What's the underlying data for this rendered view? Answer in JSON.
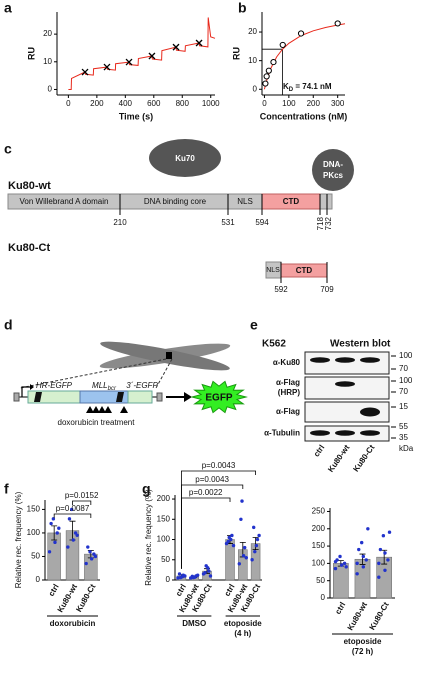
{
  "panel_labels": [
    "a",
    "b",
    "c",
    "d",
    "e",
    "f",
    "g"
  ],
  "chart_data": [
    {
      "type": "line",
      "xlabel": "Time (s)",
      "ylabel": "RU",
      "x": [
        0,
        20,
        22,
        117,
        120,
        175,
        177,
        271,
        274,
        330,
        332,
        426,
        429,
        490,
        492,
        587,
        590,
        655,
        657,
        756,
        759,
        820,
        822,
        918,
        921,
        980,
        982,
        1000,
        1030
      ],
      "xlim": [
        -80,
        1030
      ],
      "xticks": [
        0,
        200,
        400,
        600,
        800,
        1000
      ],
      "ylim": [
        -2,
        28
      ],
      "yticks": [
        0,
        10,
        20
      ],
      "series": [
        {
          "color": "#e8291c",
          "values": [
            0,
            0,
            4,
            6.3,
            5.5,
            5.2,
            7.5,
            8.1,
            7.3,
            7.0,
            9.3,
            9.9,
            9.0,
            8.7,
            11.2,
            12.1,
            11.0,
            10.6,
            14.0,
            15.3,
            14.2,
            13.8,
            15.8,
            16.8,
            15.8,
            15.4,
            26,
            19,
            18.5
          ]
        },
        {
          "color": "#000000",
          "marker": "x",
          "x": [
            117,
            271,
            426,
            587,
            756,
            918
          ],
          "values": [
            6.3,
            8.1,
            9.9,
            12.1,
            15.3,
            16.8
          ]
        }
      ]
    },
    {
      "type": "scatter",
      "xlabel": "Concentrations (nM)",
      "ylabel": "RU",
      "xlim": [
        -10,
        330
      ],
      "xticks": [
        0,
        100,
        200,
        300
      ],
      "ylim": [
        -2,
        27
      ],
      "yticks": [
        0,
        10,
        20
      ],
      "annotation": [
        "K",
        "D",
        " = 74.1 nM"
      ],
      "kd": {
        "x": 74.1,
        "y": 14.0
      },
      "series": [
        {
          "color": "#e8291c",
          "mode": "lines",
          "x": [
            0,
            10,
            25,
            50,
            74.1,
            100,
            150,
            200,
            250,
            300,
            330
          ],
          "values": [
            0,
            3.33,
            7.07,
            11.28,
            14.0,
            16.08,
            18.74,
            20.43,
            21.6,
            22.45,
            22.86
          ]
        },
        {
          "color": "#000000",
          "mode": "markers",
          "x": [
            4,
            9,
            18,
            37,
            75,
            150,
            300
          ],
          "values": [
            2,
            4.5,
            6.5,
            9.5,
            15.5,
            19.5,
            23
          ]
        }
      ]
    },
    {
      "type": "bar",
      "ylabel": "Relative rec. frequency (%)",
      "ylim": [
        0,
        170
      ],
      "yticks": [
        0,
        50,
        100,
        150
      ],
      "color": "#a8a8a8",
      "point_color": "#2233cc",
      "p_values": [
        "p=0.0152",
        "p=0.0087"
      ],
      "groups": [
        {
          "label": [
            "doxorubicin"
          ],
          "categories": [
            "ctrl",
            "Ku80-wt",
            "Ku80-Ct"
          ],
          "values": [
            100,
            105,
            55
          ],
          "errors": [
            15,
            20,
            8
          ],
          "points": [
            [
              60,
              80,
              100,
              120,
              130,
              110
            ],
            [
              70,
              85,
              100,
              130,
              150,
              95
            ],
            [
              35,
              45,
              55,
              70,
              60,
              50
            ]
          ]
        }
      ]
    },
    {
      "type": "bar",
      "ylabel": "Relative rec. frequency (%)",
      "ylim": [
        0,
        210
      ],
      "yticks": [
        0,
        50,
        100,
        150,
        200
      ],
      "color": "#a8a8a8",
      "point_color": "#2233cc",
      "p_values": [
        "p=0.0043",
        "p=0.0043",
        "p=0.0022"
      ],
      "groups": [
        {
          "label": [
            "DMSO"
          ],
          "categories": [
            "ctrl",
            "Ku80-wt",
            "Ku80-Ct"
          ],
          "values": [
            10,
            8,
            22
          ],
          "errors": [
            3,
            2,
            6
          ],
          "points": [
            [
              5,
              8,
              12,
              15,
              6,
              10
            ],
            [
              5,
              7,
              10,
              9,
              6,
              12
            ],
            [
              15,
              30,
              22,
              18,
              35,
              10
            ]
          ]
        },
        {
          "label": [
            "etoposide",
            "(4 h)"
          ],
          "categories": [
            "ctrl",
            "Ku80-wt",
            "Ku80-Ct"
          ],
          "values": [
            100,
            75,
            90
          ],
          "errors": [
            10,
            18,
            15
          ],
          "points": [
            [
              90,
              100,
              110,
              95,
              105,
              85
            ],
            [
              40,
              60,
              80,
              150,
              195,
              55
            ],
            [
              50,
              85,
              100,
              130,
              70,
              110
            ]
          ]
        }
      ]
    },
    {
      "type": "bar",
      "ylim": [
        0,
        260
      ],
      "yticks": [
        0,
        50,
        100,
        150,
        200,
        250
      ],
      "color": "#a8a8a8",
      "point_color": "#2233cc",
      "groups": [
        {
          "label": [
            "etoposide",
            "(72 h)"
          ],
          "categories": [
            "ctrl",
            "Ku80-wt",
            "Ku80-Ct"
          ],
          "values": [
            100,
            112,
            118
          ],
          "errors": [
            8,
            15,
            20
          ],
          "points": [
            [
              85,
              95,
              100,
              110,
              120,
              90,
              105
            ],
            [
              70,
              90,
              110,
              140,
              160,
              200,
              100,
              120
            ],
            [
              60,
              80,
              110,
              140,
              180,
              190,
              100,
              130
            ]
          ]
        }
      ]
    }
  ],
  "domains": {
    "wt": {
      "title": "Ku80-wt",
      "regions": [
        "Von Willebrand A domain",
        "DNA binding core",
        "NLS",
        "CTD"
      ],
      "positions": [
        210,
        531,
        594,
        718,
        732
      ]
    },
    "ct": {
      "title": "Ku80-Ct",
      "regions": [
        "NLS",
        "CTD"
      ],
      "positions": [
        592,
        709
      ]
    },
    "partners": {
      "ku70": "Ku70",
      "dna_pkcs": [
        "DNA-",
        "PKcs"
      ]
    }
  },
  "reporter": {
    "hr": "HR-EGFP",
    "mll": "MLL",
    "mll_sub": "bcr",
    "egfp3": "3´-EGFP",
    "treatment": "doxorubicin treatment",
    "output": "EGFP"
  },
  "blot": {
    "cell_line": "K562",
    "title": "Western blot",
    "rows": [
      {
        "label": [
          "α-Ku80"
        ],
        "markers": [
          100,
          70
        ]
      },
      {
        "label": [
          "α-Flag",
          "(HRP)"
        ],
        "markers": [
          100,
          70
        ]
      },
      {
        "label": [
          "α-Flag"
        ],
        "markers": [
          15
        ]
      },
      {
        "label": [
          "α-Tubulin"
        ],
        "markers": [
          55,
          35
        ]
      }
    ],
    "lanes": [
      "ctrl",
      "Ku80-wt",
      "Ku80-Ct"
    ],
    "unit": "kDa"
  }
}
